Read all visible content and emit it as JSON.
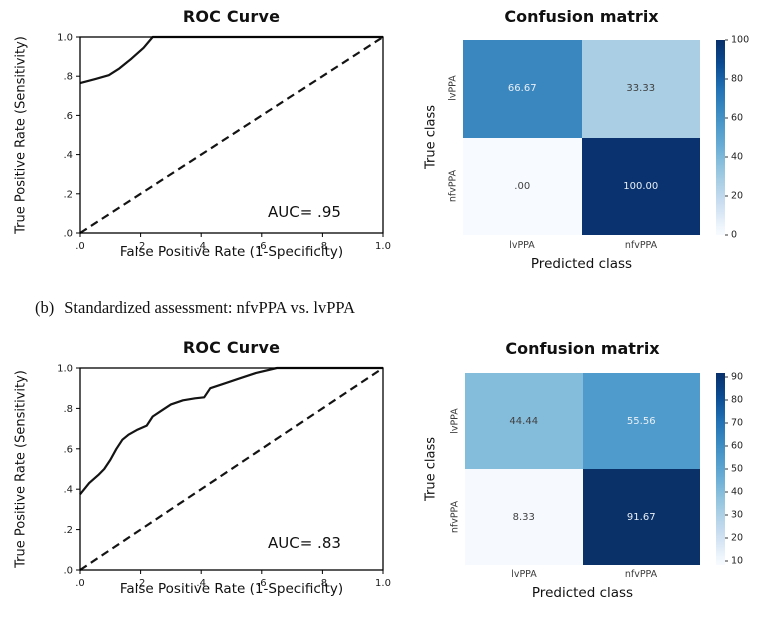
{
  "figure": {
    "caption": {
      "label": "(b)",
      "text": "Standardized assessment: nfvPPA vs. lvPPA"
    }
  },
  "chart_data": [
    {
      "type": "line",
      "title": "ROC Curve",
      "xlabel": "False Positive Rate (1-Specificity)",
      "ylabel": "True Positive Rate (Sensitivity)",
      "annotation": "AUC= .95",
      "xlim": [
        0,
        1
      ],
      "ylim": [
        0,
        1
      ],
      "xticks": [
        ".0",
        ".2",
        ".4",
        ".6",
        ".8",
        "1.0"
      ],
      "yticks": [
        ".0",
        ".2",
        ".4",
        ".6",
        ".8",
        "1.0"
      ],
      "grid": false,
      "series": [
        {
          "name": "ROC curve",
          "style": "solid",
          "x": [
            0,
            0.05,
            0.095,
            0.13,
            0.17,
            0.21,
            0.24,
            1.0
          ],
          "y": [
            0.765,
            0.785,
            0.805,
            0.84,
            0.89,
            0.945,
            1.0,
            1.0
          ]
        },
        {
          "name": "chance diagonal",
          "style": "dashed",
          "x": [
            0,
            1
          ],
          "y": [
            0,
            1
          ]
        }
      ]
    },
    {
      "type": "heatmap",
      "title": "Confusion matrix",
      "xlabel": "Predicted class",
      "ylabel": "True class",
      "classes": [
        "lvPPA",
        "nfvPPA"
      ],
      "values": [
        [
          66.67,
          33.33
        ],
        [
          0.0,
          100.0
        ]
      ],
      "cell_labels": [
        [
          "66.67",
          "33.33"
        ],
        [
          ".00",
          "100.00"
        ]
      ],
      "cell_colors": [
        [
          "#3a87c0",
          "#aacfe5"
        ],
        [
          "#f7fbff",
          "#09326e"
        ]
      ],
      "cell_text_colors": [
        [
          "#e9eff6",
          "#404040"
        ],
        [
          "#404040",
          "#e9eff6"
        ]
      ],
      "colormap": "Blues",
      "colorbar_ticks": [
        0,
        20,
        40,
        60,
        80,
        100
      ]
    },
    {
      "type": "line",
      "title": "ROC Curve",
      "xlabel": "False Positive Rate (1-Specificity)",
      "ylabel": "True Positive Rate (Sensitivity)",
      "annotation": "AUC= .83",
      "xlim": [
        0,
        1
      ],
      "ylim": [
        0,
        1
      ],
      "xticks": [
        ".0",
        ".2",
        ".4",
        ".6",
        ".8",
        "1.0"
      ],
      "yticks": [
        ".0",
        ".2",
        ".4",
        ".6",
        ".8",
        "1.0"
      ],
      "grid": false,
      "series": [
        {
          "name": "ROC curve",
          "style": "solid",
          "x": [
            0,
            0.03,
            0.06,
            0.08,
            0.1,
            0.12,
            0.14,
            0.16,
            0.19,
            0.22,
            0.24,
            0.27,
            0.3,
            0.34,
            0.38,
            0.41,
            0.43,
            0.47,
            0.52,
            0.58,
            0.65,
            1.0
          ],
          "y": [
            0.375,
            0.43,
            0.47,
            0.5,
            0.545,
            0.6,
            0.645,
            0.67,
            0.695,
            0.715,
            0.76,
            0.79,
            0.82,
            0.84,
            0.85,
            0.855,
            0.9,
            0.92,
            0.945,
            0.975,
            1.0,
            1.0
          ]
        },
        {
          "name": "chance diagonal",
          "style": "dashed",
          "x": [
            0,
            1
          ],
          "y": [
            0,
            1
          ]
        }
      ]
    },
    {
      "type": "heatmap",
      "title": "Confusion matrix",
      "xlabel": "Predicted class",
      "ylabel": "True class",
      "classes": [
        "lvPPA",
        "nfvPPA"
      ],
      "values": [
        [
          44.44,
          55.56
        ],
        [
          8.33,
          91.67
        ]
      ],
      "cell_labels": [
        [
          "44.44",
          "55.56"
        ],
        [
          "8.33",
          "91.67"
        ]
      ],
      "cell_colors": [
        [
          "#84bcdb",
          "#4f9bcb"
        ],
        [
          "#f6faff",
          "#0a3168"
        ]
      ],
      "cell_text_colors": [
        [
          "#404040",
          "#e9eff6"
        ],
        [
          "#404040",
          "#e9eff6"
        ]
      ],
      "colormap": "Blues",
      "colorbar_ticks": [
        10,
        20,
        30,
        40,
        50,
        60,
        70,
        80,
        90
      ]
    }
  ]
}
